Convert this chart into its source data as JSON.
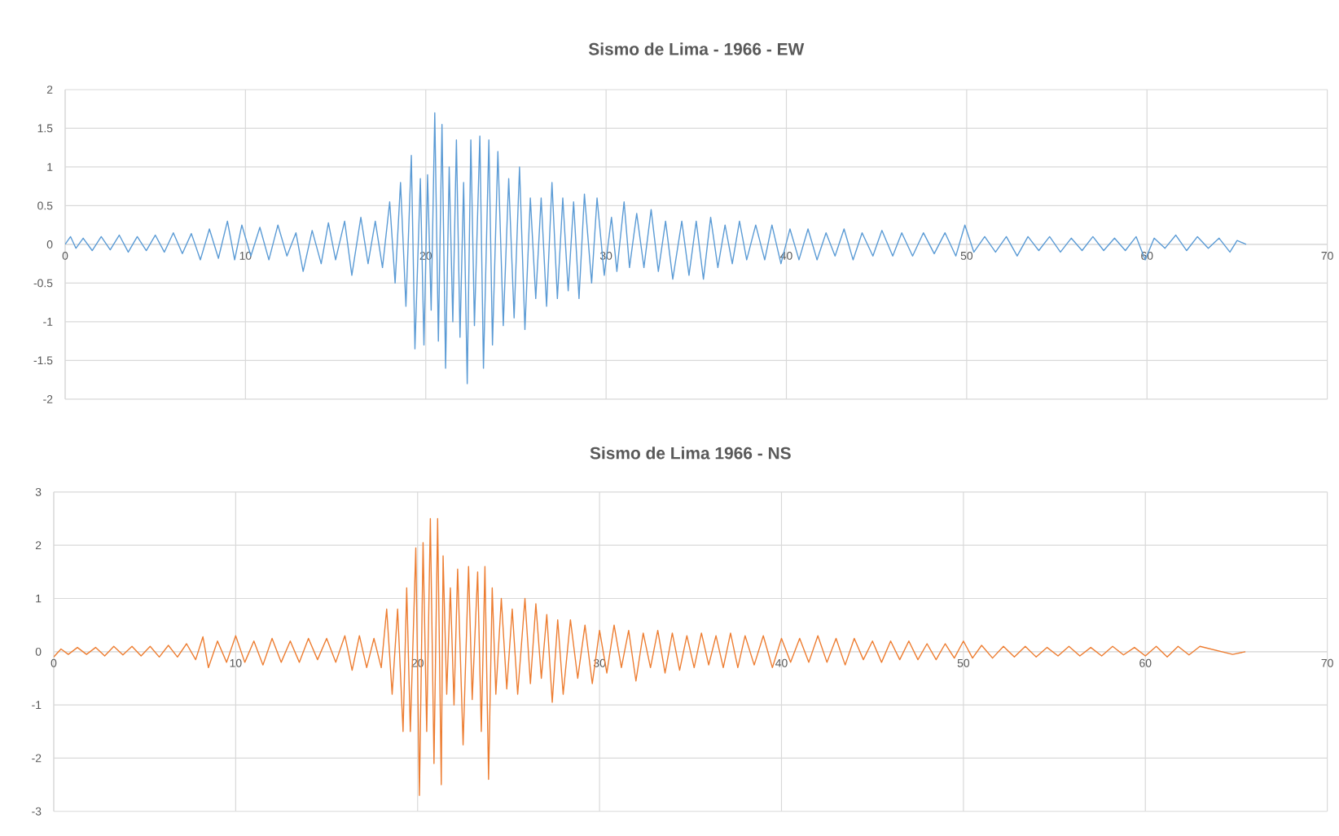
{
  "chart_data": [
    {
      "type": "line",
      "title": "Sismo de Lima - 1966 - EW",
      "xlim": [
        0,
        70
      ],
      "ylim": [
        -2,
        2
      ],
      "xticks": [
        0,
        10,
        20,
        30,
        40,
        50,
        60,
        70
      ],
      "yticks": [
        -2,
        -1.5,
        -1,
        -0.5,
        0,
        0.5,
        1,
        1.5,
        2
      ],
      "grid": true,
      "series": [
        {
          "color": "#5b9bd5",
          "x": [
            0,
            0.3,
            0.6,
            1,
            1.5,
            2,
            2.5,
            3,
            3.5,
            4,
            4.5,
            5,
            5.5,
            6,
            6.5,
            7,
            7.5,
            8,
            8.5,
            9,
            9.4,
            9.8,
            10.3,
            10.8,
            11.3,
            11.8,
            12.3,
            12.8,
            13.2,
            13.7,
            14.2,
            14.6,
            15,
            15.5,
            15.9,
            16.4,
            16.8,
            17.2,
            17.6,
            18,
            18.3,
            18.6,
            18.9,
            19.2,
            19.4,
            19.7,
            19.9,
            20.1,
            20.3,
            20.5,
            20.7,
            20.9,
            21.1,
            21.3,
            21.5,
            21.7,
            21.9,
            22.1,
            22.3,
            22.5,
            22.7,
            23,
            23.2,
            23.5,
            23.7,
            24,
            24.3,
            24.6,
            24.9,
            25.2,
            25.5,
            25.8,
            26.1,
            26.4,
            26.7,
            27,
            27.3,
            27.6,
            27.9,
            28.2,
            28.5,
            28.8,
            29.2,
            29.5,
            29.9,
            30.3,
            30.6,
            31,
            31.3,
            31.7,
            32.1,
            32.5,
            32.9,
            33.3,
            33.7,
            34.2,
            34.6,
            35,
            35.4,
            35.8,
            36.2,
            36.6,
            37,
            37.4,
            37.8,
            38.3,
            38.8,
            39.2,
            39.7,
            40.2,
            40.7,
            41.2,
            41.7,
            42.2,
            42.7,
            43.2,
            43.7,
            44.2,
            44.8,
            45.3,
            45.9,
            46.4,
            47,
            47.6,
            48.2,
            48.8,
            49.4,
            49.9,
            50.4,
            51,
            51.6,
            52.2,
            52.8,
            53.4,
            54,
            54.6,
            55.2,
            55.8,
            56.4,
            57,
            57.6,
            58.2,
            58.8,
            59.4,
            59.9,
            60.4,
            61,
            61.6,
            62.2,
            62.8,
            63.4,
            64,
            64.6,
            65,
            65.5
          ],
          "values": [
            0,
            0.1,
            -0.05,
            0.08,
            -0.08,
            0.1,
            -0.07,
            0.12,
            -0.1,
            0.1,
            -0.08,
            0.12,
            -0.1,
            0.15,
            -0.12,
            0.14,
            -0.2,
            0.2,
            -0.18,
            0.3,
            -0.2,
            0.25,
            -0.15,
            0.22,
            -0.2,
            0.25,
            -0.15,
            0.15,
            -0.35,
            0.18,
            -0.25,
            0.28,
            -0.2,
            0.3,
            -0.4,
            0.35,
            -0.25,
            0.3,
            -0.3,
            0.55,
            -0.5,
            0.8,
            -0.8,
            1.15,
            -1.35,
            0.85,
            -1.3,
            0.9,
            -0.85,
            1.7,
            -1.25,
            1.55,
            -1.6,
            1.0,
            -1.0,
            1.35,
            -1.2,
            0.8,
            -1.8,
            1.35,
            -1.05,
            1.4,
            -1.6,
            1.35,
            -1.3,
            1.2,
            -1.05,
            0.85,
            -0.95,
            1.0,
            -1.1,
            0.6,
            -0.7,
            0.6,
            -0.8,
            0.8,
            -0.7,
            0.6,
            -0.6,
            0.55,
            -0.7,
            0.65,
            -0.5,
            0.6,
            -0.4,
            0.35,
            -0.35,
            0.55,
            -0.3,
            0.4,
            -0.3,
            0.45,
            -0.35,
            0.3,
            -0.45,
            0.3,
            -0.4,
            0.3,
            -0.45,
            0.35,
            -0.3,
            0.25,
            -0.25,
            0.3,
            -0.2,
            0.25,
            -0.2,
            0.25,
            -0.25,
            0.2,
            -0.2,
            0.2,
            -0.2,
            0.15,
            -0.15,
            0.2,
            -0.2,
            0.15,
            -0.15,
            0.18,
            -0.15,
            0.15,
            -0.15,
            0.15,
            -0.12,
            0.15,
            -0.15,
            0.25,
            -0.1,
            0.1,
            -0.1,
            0.1,
            -0.15,
            0.1,
            -0.08,
            0.1,
            -0.1,
            0.08,
            -0.08,
            0.1,
            -0.08,
            0.08,
            -0.08,
            0.1,
            -0.2,
            0.08,
            -0.05,
            0.12,
            -0.08,
            0.1,
            -0.05,
            0.08,
            -0.1,
            0.05,
            0
          ]
        }
      ]
    },
    {
      "type": "line",
      "title": "Sismo de Lima 1966 - NS",
      "xlim": [
        0,
        70
      ],
      "ylim": [
        -3,
        3
      ],
      "xticks": [
        0,
        10,
        20,
        30,
        40,
        50,
        60,
        70
      ],
      "yticks": [
        -3,
        -2,
        -1,
        0,
        1,
        2,
        3
      ],
      "grid": true,
      "series": [
        {
          "color": "#ed7d31",
          "x": [
            0,
            0.4,
            0.8,
            1.3,
            1.8,
            2.3,
            2.8,
            3.3,
            3.8,
            4.3,
            4.8,
            5.3,
            5.8,
            6.3,
            6.8,
            7.3,
            7.8,
            8.2,
            8.5,
            9,
            9.5,
            10,
            10.5,
            11,
            11.5,
            12,
            12.5,
            13,
            13.5,
            14,
            14.5,
            15,
            15.5,
            16,
            16.4,
            16.8,
            17.2,
            17.6,
            18,
            18.3,
            18.6,
            18.9,
            19.2,
            19.4,
            19.6,
            19.9,
            20.1,
            20.3,
            20.5,
            20.7,
            20.9,
            21.1,
            21.3,
            21.4,
            21.6,
            21.8,
            22,
            22.2,
            22.5,
            22.8,
            23,
            23.3,
            23.5,
            23.7,
            23.9,
            24.1,
            24.3,
            24.6,
            24.9,
            25.2,
            25.5,
            25.9,
            26.2,
            26.5,
            26.8,
            27.1,
            27.4,
            27.7,
            28,
            28.4,
            28.8,
            29.2,
            29.6,
            30,
            30.4,
            30.8,
            31.2,
            31.6,
            32,
            32.4,
            32.8,
            33.2,
            33.6,
            34,
            34.4,
            34.8,
            35.2,
            35.6,
            36,
            36.4,
            36.8,
            37.2,
            37.6,
            38,
            38.5,
            39,
            39.5,
            40,
            40.5,
            41,
            41.5,
            42,
            42.5,
            43,
            43.5,
            44,
            44.5,
            45,
            45.5,
            46,
            46.5,
            47,
            47.5,
            48,
            48.5,
            49,
            49.5,
            50,
            50.5,
            51,
            51.6,
            52.2,
            52.8,
            53.4,
            54,
            54.6,
            55.2,
            55.8,
            56.4,
            57,
            57.6,
            58.2,
            58.8,
            59.4,
            60,
            60.6,
            61.2,
            61.8,
            62.4,
            63,
            64.8,
            65.5
          ],
          "values": [
            -0.1,
            0.05,
            -0.05,
            0.08,
            -0.05,
            0.08,
            -0.08,
            0.1,
            -0.06,
            0.1,
            -0.08,
            0.1,
            -0.1,
            0.12,
            -0.1,
            0.15,
            -0.15,
            0.28,
            -0.3,
            0.2,
            -0.2,
            0.3,
            -0.2,
            0.2,
            -0.25,
            0.25,
            -0.2,
            0.2,
            -0.2,
            0.25,
            -0.15,
            0.25,
            -0.2,
            0.3,
            -0.35,
            0.3,
            -0.3,
            0.25,
            -0.3,
            0.8,
            -0.8,
            0.8,
            -1.5,
            1.2,
            -1.5,
            1.95,
            -2.7,
            2.05,
            -1.5,
            2.5,
            -2.1,
            2.5,
            -2.5,
            1.8,
            -0.8,
            1.2,
            -1.0,
            1.55,
            -1.75,
            1.6,
            -0.9,
            1.5,
            -1.5,
            1.6,
            -2.4,
            1.2,
            -0.8,
            1.0,
            -0.7,
            0.8,
            -0.8,
            1.0,
            -0.6,
            0.9,
            -0.5,
            0.7,
            -0.95,
            0.6,
            -0.8,
            0.6,
            -0.5,
            0.5,
            -0.6,
            0.4,
            -0.4,
            0.5,
            -0.3,
            0.4,
            -0.55,
            0.35,
            -0.3,
            0.4,
            -0.4,
            0.35,
            -0.35,
            0.3,
            -0.3,
            0.35,
            -0.25,
            0.3,
            -0.3,
            0.35,
            -0.3,
            0.3,
            -0.25,
            0.3,
            -0.3,
            0.25,
            -0.2,
            0.25,
            -0.2,
            0.3,
            -0.2,
            0.25,
            -0.25,
            0.25,
            -0.15,
            0.2,
            -0.2,
            0.2,
            -0.15,
            0.2,
            -0.15,
            0.15,
            -0.15,
            0.15,
            -0.12,
            0.2,
            -0.12,
            0.12,
            -0.12,
            0.1,
            -0.1,
            0.1,
            -0.1,
            0.08,
            -0.08,
            0.1,
            -0.08,
            0.08,
            -0.08,
            0.1,
            -0.06,
            0.08,
            -0.08,
            0.1,
            -0.1,
            0.1,
            -0.06,
            0.1,
            -0.05,
            0
          ]
        }
      ]
    }
  ]
}
